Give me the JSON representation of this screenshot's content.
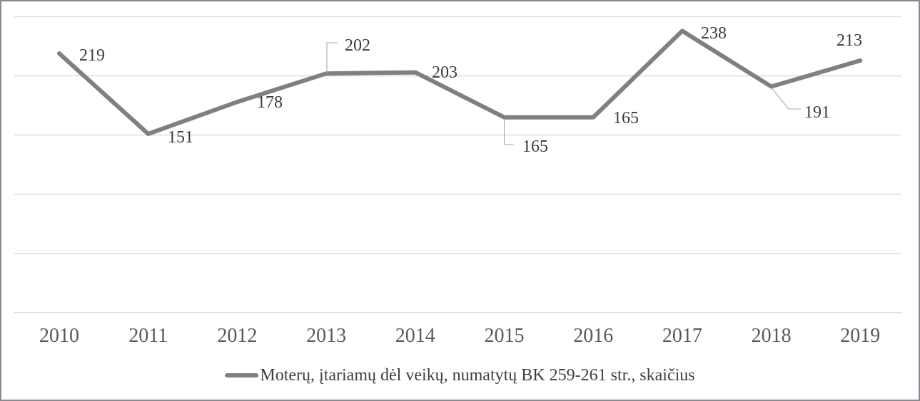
{
  "chart_data": {
    "type": "line",
    "title": "",
    "categories": [
      "2010",
      "2011",
      "2012",
      "2013",
      "2014",
      "2015",
      "2016",
      "2017",
      "2018",
      "2019"
    ],
    "series": [
      {
        "name": "Moterų, įtariamų dėl veikų, numatytų BK 259-261 str., skaičius",
        "values": [
          219,
          151,
          178,
          202,
          203,
          165,
          165,
          238,
          191,
          213
        ]
      }
    ],
    "xlabel": "",
    "ylabel": "",
    "ylim": [
      0,
      250
    ],
    "gridline_step": 50,
    "grid": "horizontal",
    "y_axis_labels_visible": false,
    "data_labels_visible": true,
    "legend_position": "bottom"
  },
  "legend": {
    "label": "Moterų, įtariamų dėl veikų, numatytų BK 259-261 str., skaičius"
  },
  "colors": {
    "line": "#808080",
    "gridline": "#d9d9d9",
    "data_label_text": "#3b3b3b",
    "axis_label_text": "#595959",
    "leader_line": "#a6a6a6",
    "frame_border": "#8a8a8f",
    "background": "#ffffff"
  }
}
